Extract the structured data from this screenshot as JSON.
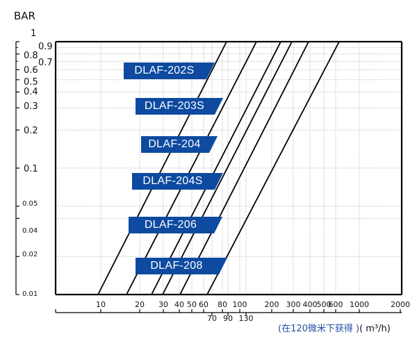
{
  "chart_data": {
    "type": "line",
    "title": "",
    "ylabel": "BAR",
    "xlabel": "(在120微米下获得) (m³/h)",
    "xscale": "log",
    "yscale": "log",
    "ylim": [
      0.01,
      1
    ],
    "xlim": [
      5,
      2000
    ],
    "y_ticks_left": [
      "1",
      "0.8",
      "0.6",
      "0.5",
      "0.4",
      "0.3",
      "0.2",
      "0.1",
      "0.05",
      "0.04",
      "0.02",
      "0.01"
    ],
    "y_ticks_inner": [
      "0.9",
      "0.7"
    ],
    "x_ticks_upper": [
      "10",
      "20",
      "30",
      "40",
      "50",
      "60",
      "80",
      "100",
      "200",
      "300",
      "400",
      "500",
      "600",
      "1000",
      "2000"
    ],
    "x_ticks_lower": [
      "70",
      "90",
      "130"
    ],
    "grid": true,
    "series": [
      {
        "name": "DLAF-202S",
        "points": [
          [
            9,
            0.01
          ],
          [
            80,
            1
          ]
        ]
      },
      {
        "name": "DLAF-203S",
        "points": [
          [
            16,
            0.01
          ],
          [
            135,
            1
          ]
        ]
      },
      {
        "name": "DLAF-204",
        "points": [
          [
            24,
            0.01
          ],
          [
            210,
            1
          ]
        ]
      },
      {
        "name": "DLAF-204S",
        "points": [
          [
            28,
            0.01
          ],
          [
            250,
            1
          ]
        ]
      },
      {
        "name": "DLAF-206",
        "points": [
          [
            38,
            0.01
          ],
          [
            330,
            1
          ]
        ]
      },
      {
        "name": "DLAF-208",
        "points": [
          [
            62,
            0.01
          ],
          [
            560,
            1
          ]
        ]
      }
    ],
    "legend_position": "inline-labels"
  },
  "labels": {
    "y_title": "BAR",
    "unit_cn": "(在120微米下获得 )",
    "unit_si": "( m³/h)",
    "badges": [
      "DLAF-202S",
      "DLAF-203S",
      "DLAF-204",
      "DLAF-204S",
      "DLAF-206",
      "DLAF-208"
    ]
  },
  "colors": {
    "badge_bg": "#0d4aa0",
    "badge_text": "#ffffff",
    "grid": "#cfcfcf",
    "axis": "#000000",
    "unit_cn": "#1f4fa0"
  }
}
